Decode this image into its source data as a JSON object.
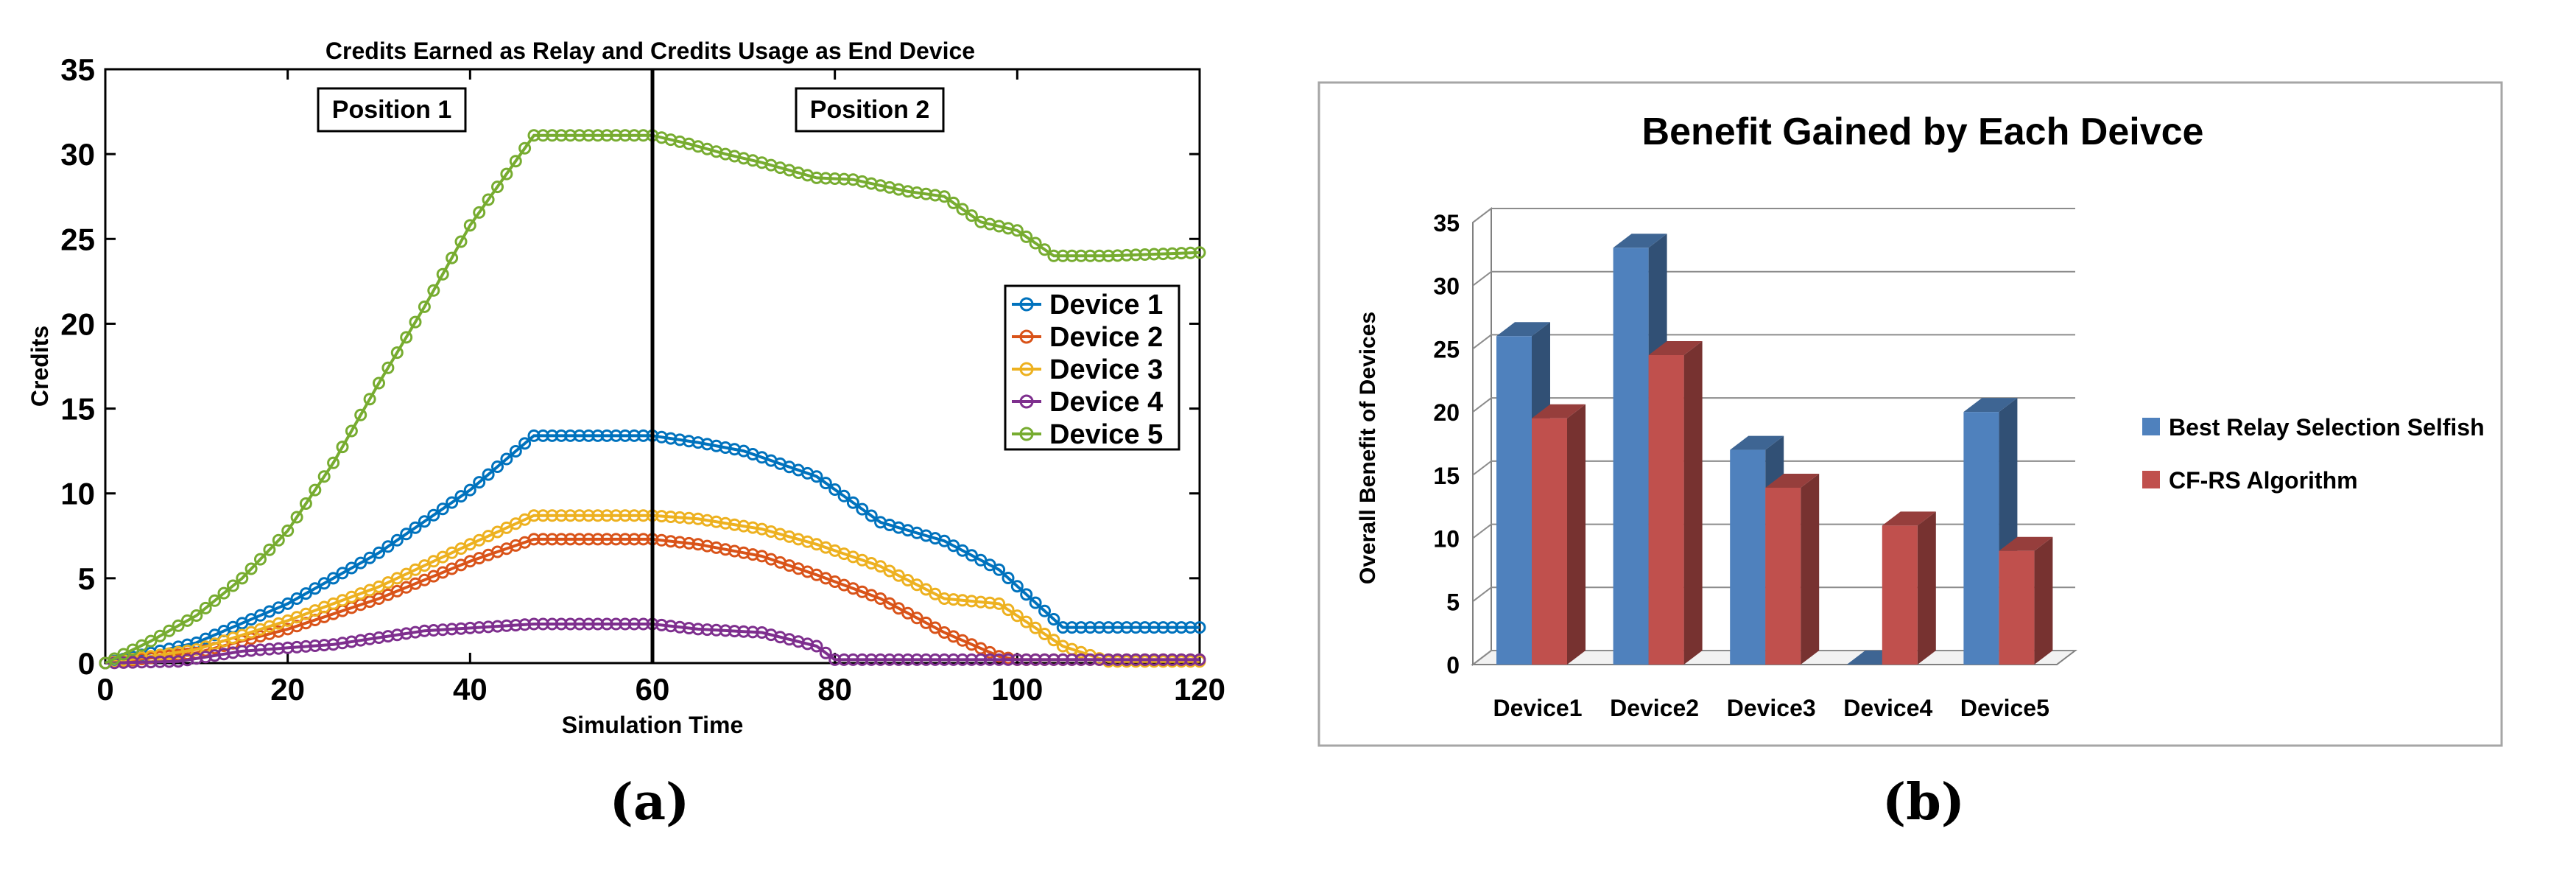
{
  "figure": {
    "panel_a_caption": "(a)",
    "panel_b_caption": "(b)",
    "panel_a_annotations": [
      "Position 1",
      "Position 2"
    ]
  },
  "colors": {
    "device1": "#0072BD",
    "device2": "#D95319",
    "device3": "#EDB120",
    "device4": "#7E2F8E",
    "device5": "#77AC30",
    "bar_blue": "#4F81BD",
    "bar_red": "#C0504D"
  },
  "chart_data": [
    {
      "type": "line",
      "title": "Credits Earned as Relay and Credits Usage as End Device",
      "xlabel": "Simulation Time",
      "ylabel": "Credits",
      "xlim": [
        0,
        120
      ],
      "ylim": [
        0,
        35
      ],
      "xticks": [
        0,
        20,
        40,
        60,
        80,
        100,
        120
      ],
      "yticks": [
        0,
        5,
        10,
        15,
        20,
        25,
        30,
        35
      ],
      "vertical_line_x": 60,
      "legend_position": "right",
      "marker": "circle",
      "series": [
        {
          "name": "Device 1",
          "points": [
            [
              0,
              0
            ],
            [
              10,
              1.2
            ],
            [
              20,
              3.5
            ],
            [
              30,
              6.5
            ],
            [
              40,
              10.2
            ],
            [
              47,
              13.4
            ],
            [
              60,
              13.4
            ],
            [
              65,
              13.0
            ],
            [
              70,
              12.5
            ],
            [
              78,
              11.0
            ],
            [
              85,
              8.3
            ],
            [
              92,
              7.2
            ],
            [
              98,
              5.5
            ],
            [
              105,
              2.1
            ],
            [
              120,
              2.1
            ]
          ]
        },
        {
          "name": "Device 2",
          "points": [
            [
              0,
              0
            ],
            [
              10,
              0.6
            ],
            [
              20,
              2.0
            ],
            [
              30,
              3.8
            ],
            [
              40,
              6.0
            ],
            [
              47,
              7.3
            ],
            [
              60,
              7.3
            ],
            [
              65,
              7.0
            ],
            [
              72,
              6.3
            ],
            [
              78,
              5.2
            ],
            [
              85,
              3.8
            ],
            [
              92,
              1.8
            ],
            [
              98,
              0.4
            ],
            [
              100,
              0.2
            ],
            [
              120,
              0.2
            ]
          ]
        },
        {
          "name": "Device 3",
          "points": [
            [
              0,
              0
            ],
            [
              10,
              0.8
            ],
            [
              20,
              2.5
            ],
            [
              30,
              4.5
            ],
            [
              40,
              7.0
            ],
            [
              47,
              8.7
            ],
            [
              60,
              8.7
            ],
            [
              65,
              8.5
            ],
            [
              72,
              7.9
            ],
            [
              78,
              7.0
            ],
            [
              85,
              5.7
            ],
            [
              92,
              3.8
            ],
            [
              98,
              3.5
            ],
            [
              105,
              1.0
            ],
            [
              110,
              0.1
            ],
            [
              120,
              0.1
            ]
          ]
        },
        {
          "name": "Device 4",
          "points": [
            [
              0,
              0
            ],
            [
              8,
              0.1
            ],
            [
              15,
              0.7
            ],
            [
              25,
              1.1
            ],
            [
              35,
              1.9
            ],
            [
              47,
              2.3
            ],
            [
              60,
              2.3
            ],
            [
              65,
              2.0
            ],
            [
              72,
              1.8
            ],
            [
              78,
              1.0
            ],
            [
              80,
              0.2
            ],
            [
              120,
              0.2
            ]
          ]
        },
        {
          "name": "Device 5",
          "points": [
            [
              0,
              0
            ],
            [
              5,
              1.3
            ],
            [
              10,
              2.8
            ],
            [
              15,
              5.0
            ],
            [
              20,
              7.8
            ],
            [
              25,
              11.8
            ],
            [
              30,
              16.5
            ],
            [
              35,
              21.0
            ],
            [
              40,
              25.8
            ],
            [
              47,
              31.1
            ],
            [
              60,
              31.1
            ],
            [
              64,
              30.6
            ],
            [
              68,
              30.0
            ],
            [
              72,
              29.5
            ],
            [
              78,
              28.6
            ],
            [
              82,
              28.5
            ],
            [
              88,
              27.8
            ],
            [
              92,
              27.5
            ],
            [
              96,
              26.0
            ],
            [
              100,
              25.5
            ],
            [
              104,
              24.0
            ],
            [
              110,
              24.0
            ],
            [
              120,
              24.2
            ]
          ]
        }
      ]
    },
    {
      "type": "bar",
      "title": "Benefit Gained by Each Deivce",
      "xlabel": "",
      "ylabel": "Overall Benefit of Devices",
      "ylim": [
        0,
        35
      ],
      "yticks": [
        0,
        5,
        10,
        15,
        20,
        25,
        30,
        35
      ],
      "legend_position": "right",
      "categories": [
        "Device1",
        "Device2",
        "Device3",
        "Device4",
        "Device5"
      ],
      "series": [
        {
          "name": "Best Relay Selection Selfish",
          "values": [
            26,
            33,
            17,
            0,
            20
          ]
        },
        {
          "name": "CF-RS Algorithm",
          "values": [
            19.5,
            24.5,
            14,
            11,
            9
          ]
        }
      ]
    }
  ]
}
